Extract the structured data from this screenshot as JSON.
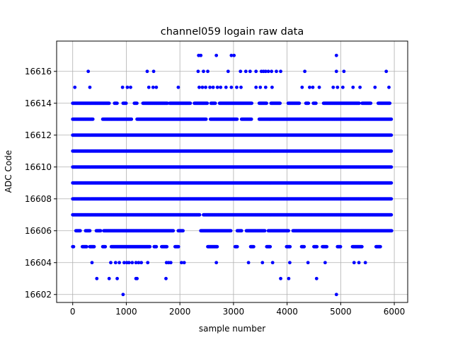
{
  "chart_data": {
    "type": "scatter",
    "title": "channel059 logain raw data",
    "xlabel": "sample number",
    "ylabel": "ADC Code",
    "xlim": [
      -300,
      6250
    ],
    "ylim": [
      16601.5,
      16617.9
    ],
    "xticks": [
      0,
      1000,
      2000,
      3000,
      4000,
      5000,
      6000
    ],
    "xtick_labels": [
      "0",
      "1000",
      "2000",
      "3000",
      "4000",
      "5000",
      "6000"
    ],
    "yticks": [
      16602,
      16604,
      16606,
      16608,
      16610,
      16612,
      16614,
      16616
    ],
    "ytick_labels": [
      "16602",
      "16604",
      "16606",
      "16608",
      "16610",
      "16612",
      "16614",
      "16616"
    ],
    "grid": true,
    "marker_color": "#0000ff",
    "series": [
      {
        "n_samples": 5950,
        "levels": [
          {
            "y": 16617,
            "x": [
              2350,
              2390,
              2680,
              2960,
              3010,
              4920
            ]
          },
          {
            "y": 16616,
            "x": [
              290,
              1390,
              1510,
              2340,
              2440,
              2520,
              2900,
              3130,
              3230,
              3310,
              3420,
              3520,
              3560,
              3600,
              3650,
              3710,
              3800,
              3880,
              4330,
              4920,
              5060,
              5850
            ]
          },
          {
            "y": 16615,
            "x": [
              40,
              320,
              930,
              1020,
              1080,
              1420,
              1500,
              1560,
              1970,
              2360,
              2420,
              2480,
              2560,
              2620,
              2700,
              2760,
              2860,
              2960,
              3060,
              3140,
              3420,
              3500,
              3600,
              3720,
              4280,
              4420,
              4480,
              4600,
              4860,
              4940,
              5040,
              5230,
              5360,
              5640,
              5900
            ]
          },
          {
            "y": 16614,
            "x_ranges": [
              [
                0,
                680
              ],
              [
                780,
                830
              ],
              [
                940,
                1000
              ],
              [
                1150,
                1200
              ],
              [
                1310,
                1770
              ],
              [
                1810,
                2200
              ],
              [
                2270,
                2510
              ],
              [
                2580,
                2660
              ],
              [
                2740,
                3340
              ],
              [
                3480,
                3620
              ],
              [
                3700,
                3870
              ],
              [
                4020,
                4230
              ],
              [
                4350,
                4400
              ],
              [
                4490,
                4540
              ],
              [
                4680,
                5350
              ],
              [
                5400,
                5560
              ],
              [
                5700,
                5920
              ]
            ]
          },
          {
            "y": 16613,
            "x_ranges": [
              [
                0,
                380
              ],
              [
                560,
                1100
              ],
              [
                1200,
                2490
              ],
              [
                2570,
                3070
              ],
              [
                3150,
                3340
              ],
              [
                3480,
                5950
              ]
            ]
          },
          {
            "y": 16612,
            "x_ranges": [
              [
                0,
                5950
              ]
            ]
          },
          {
            "y": 16611,
            "x_ranges": [
              [
                0,
                5950
              ]
            ]
          },
          {
            "y": 16610,
            "x_ranges": [
              [
                0,
                5950
              ]
            ]
          },
          {
            "y": 16609,
            "x_ranges": [
              [
                0,
                5950
              ]
            ]
          },
          {
            "y": 16608,
            "x_ranges": [
              [
                0,
                5950
              ]
            ]
          },
          {
            "y": 16607,
            "x_ranges": [
              [
                0,
                2370
              ],
              [
                2440,
                5950
              ]
            ]
          },
          {
            "y": 16606,
            "x_ranges": [
              [
                60,
                140
              ],
              [
                240,
                320
              ],
              [
                440,
                520
              ],
              [
                580,
                1880
              ],
              [
                1970,
                2060
              ],
              [
                2390,
                2950
              ],
              [
                3070,
                3150
              ],
              [
                3240,
                3590
              ],
              [
                3650,
                4030
              ],
              [
                4110,
                5950
              ]
            ]
          },
          {
            "y": 16605,
            "x_ranges": [
              [
                0,
                20
              ],
              [
                180,
                260
              ],
              [
                320,
                400
              ],
              [
                560,
                610
              ],
              [
                720,
                1440
              ],
              [
                1520,
                1560
              ],
              [
                1660,
                1760
              ],
              [
                1910,
                1980
              ],
              [
                2520,
                2700
              ],
              [
                3030,
                3070
              ],
              [
                3320,
                3380
              ],
              [
                3620,
                3690
              ],
              [
                3990,
                4060
              ],
              [
                4270,
                4320
              ],
              [
                4500,
                4560
              ],
              [
                4660,
                4740
              ],
              [
                4940,
                5000
              ],
              [
                5220,
                5400
              ],
              [
                5660,
                5740
              ]
            ]
          },
          {
            "y": 16604,
            "x": [
              360,
              710,
              800,
              870,
              960,
              1010,
              1050,
              1110,
              1180,
              1230,
              1280,
              1400,
              1750,
              1790,
              1830,
              2030,
              2080,
              2680,
              3280,
              3540,
              3730,
              4050,
              4390,
              4710,
              5250,
              5340,
              5460
            ]
          },
          {
            "y": 16603,
            "x": [
              450,
              680,
              830,
              1180,
              1200,
              1740,
              3880,
              4030,
              4550
            ]
          },
          {
            "y": 16602,
            "x": [
              940,
              4920
            ]
          }
        ]
      }
    ]
  }
}
